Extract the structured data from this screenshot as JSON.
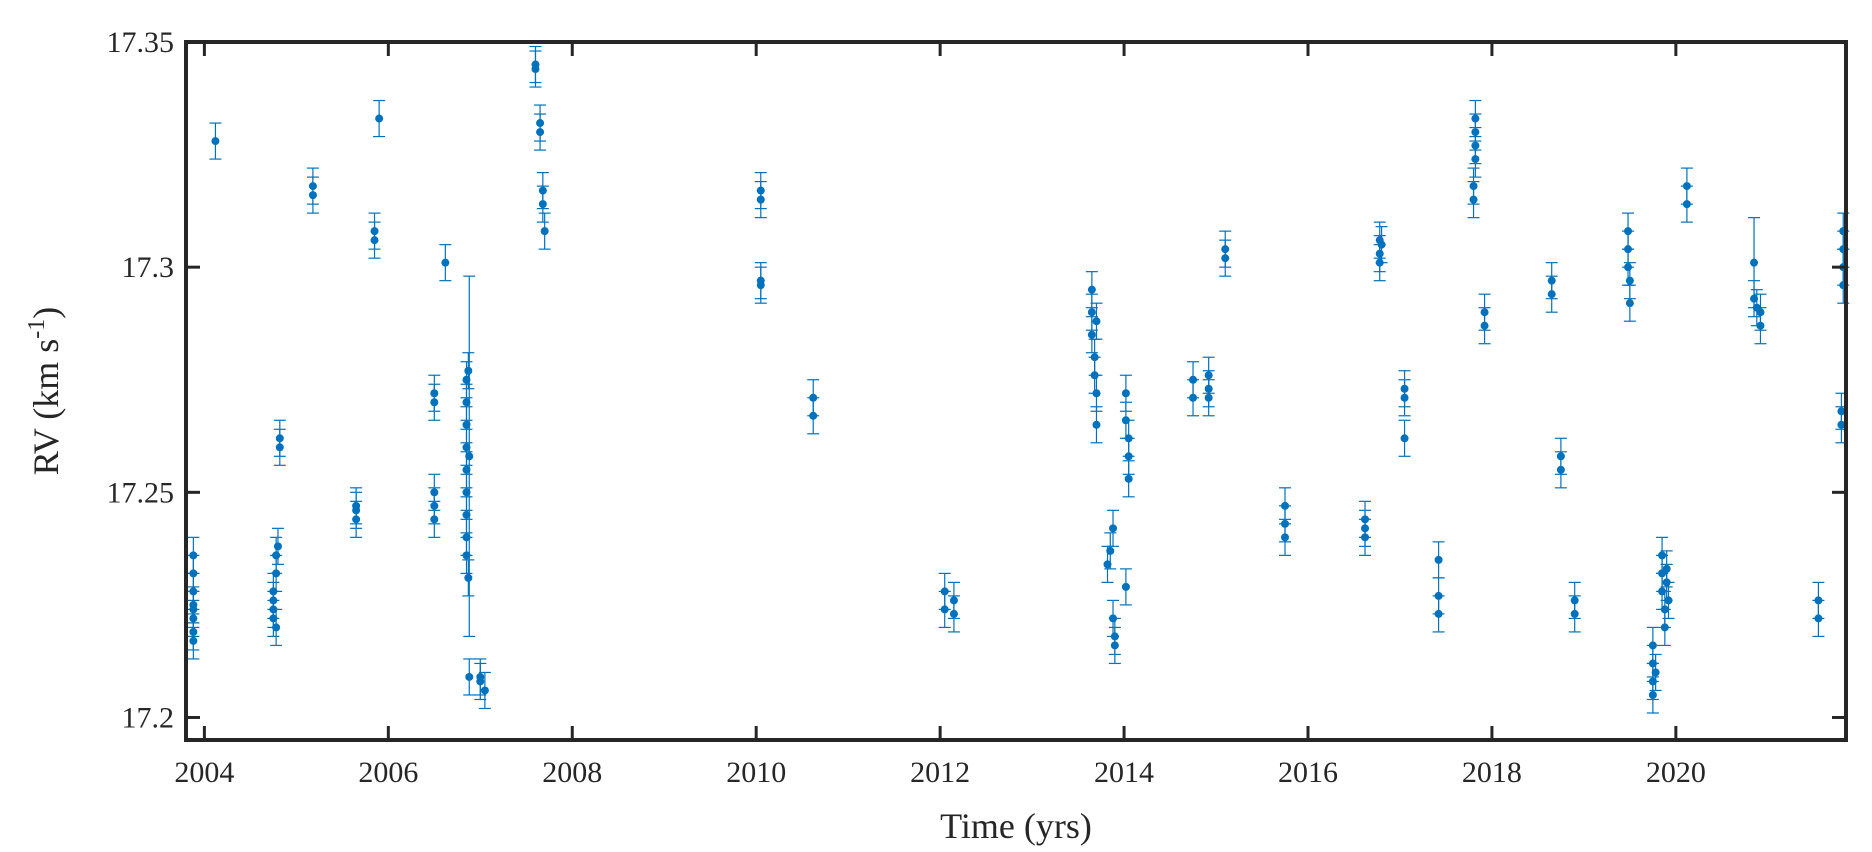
{
  "chart_data": {
    "type": "scatter",
    "title": "",
    "xlabel": "Time (yrs)",
    "ylabel_parts": [
      "RV (km s",
      "-1",
      ")"
    ],
    "xlim": [
      2003.8,
      2021.85
    ],
    "ylim": [
      17.195,
      17.35
    ],
    "xticks": [
      2004,
      2006,
      2008,
      2010,
      2012,
      2014,
      2016,
      2018,
      2020
    ],
    "xtick_labels": [
      "2004",
      "2006",
      "2008",
      "2010",
      "2012",
      "2014",
      "2016",
      "2018",
      "2020"
    ],
    "yticks": [
      17.2,
      17.25,
      17.3,
      17.35
    ],
    "ytick_labels": [
      "17.2",
      "17.25",
      "17.3",
      "17.35"
    ],
    "grid": false,
    "marker_color": "#0072BD",
    "series": [
      {
        "points": [
          [
            2003.88,
            17.236,
            0.004
          ],
          [
            2003.88,
            17.232,
            0.004
          ],
          [
            2003.88,
            17.228,
            0.004
          ],
          [
            2003.88,
            17.224,
            0.004
          ],
          [
            2003.88,
            17.222,
            0.004
          ],
          [
            2003.88,
            17.219,
            0.004
          ],
          [
            2003.88,
            17.217,
            0.004
          ],
          [
            2003.88,
            17.225,
            0.004
          ],
          [
            2004.12,
            17.328,
            0.004
          ],
          [
            2004.75,
            17.222,
            0.004
          ],
          [
            2004.75,
            17.226,
            0.004
          ],
          [
            2004.75,
            17.228,
            0.004
          ],
          [
            2004.75,
            17.224,
            0.004
          ],
          [
            2004.78,
            17.232,
            0.004
          ],
          [
            2004.78,
            17.236,
            0.004
          ],
          [
            2004.78,
            17.22,
            0.004
          ],
          [
            2004.8,
            17.238,
            0.004
          ],
          [
            2004.82,
            17.26,
            0.004
          ],
          [
            2004.82,
            17.262,
            0.004
          ],
          [
            2005.18,
            17.318,
            0.004
          ],
          [
            2005.18,
            17.316,
            0.004
          ],
          [
            2005.65,
            17.244,
            0.004
          ],
          [
            2005.65,
            17.246,
            0.004
          ],
          [
            2005.65,
            17.247,
            0.004
          ],
          [
            2005.85,
            17.308,
            0.004
          ],
          [
            2005.85,
            17.306,
            0.004
          ],
          [
            2005.9,
            17.333,
            0.004
          ],
          [
            2006.5,
            17.272,
            0.004
          ],
          [
            2006.5,
            17.27,
            0.004
          ],
          [
            2006.5,
            17.247,
            0.004
          ],
          [
            2006.5,
            17.244,
            0.004
          ],
          [
            2006.5,
            17.25,
            0.004
          ],
          [
            2006.62,
            17.301,
            0.004
          ],
          [
            2006.85,
            17.275,
            0.004
          ],
          [
            2006.85,
            17.27,
            0.004
          ],
          [
            2006.85,
            17.265,
            0.004
          ],
          [
            2006.85,
            17.26,
            0.004
          ],
          [
            2006.85,
            17.255,
            0.004
          ],
          [
            2006.85,
            17.25,
            0.004
          ],
          [
            2006.85,
            17.245,
            0.004
          ],
          [
            2006.85,
            17.24,
            0.004
          ],
          [
            2006.85,
            17.236,
            0.004
          ],
          [
            2006.87,
            17.231,
            0.004
          ],
          [
            2006.87,
            17.277,
            0.004
          ],
          [
            2006.88,
            17.258,
            0.04
          ],
          [
            2006.88,
            17.209,
            0.004
          ],
          [
            2007.0,
            17.209,
            0.004
          ],
          [
            2007.05,
            17.206,
            0.004
          ],
          [
            2007.0,
            17.208,
            0.004
          ],
          [
            2007.6,
            17.345,
            0.004
          ],
          [
            2007.6,
            17.344,
            0.004
          ],
          [
            2007.65,
            17.332,
            0.004
          ],
          [
            2007.65,
            17.33,
            0.004
          ],
          [
            2007.68,
            17.317,
            0.004
          ],
          [
            2007.68,
            17.314,
            0.004
          ],
          [
            2007.7,
            17.308,
            0.004
          ],
          [
            2010.05,
            17.317,
            0.004
          ],
          [
            2010.05,
            17.315,
            0.004
          ],
          [
            2010.05,
            17.297,
            0.004
          ],
          [
            2010.05,
            17.296,
            0.004
          ],
          [
            2010.62,
            17.271,
            0.004
          ],
          [
            2010.62,
            17.267,
            0.004
          ],
          [
            2012.05,
            17.228,
            0.004
          ],
          [
            2012.05,
            17.224,
            0.004
          ],
          [
            2012.15,
            17.226,
            0.004
          ],
          [
            2012.15,
            17.223,
            0.004
          ],
          [
            2013.65,
            17.295,
            0.004
          ],
          [
            2013.65,
            17.29,
            0.004
          ],
          [
            2013.65,
            17.285,
            0.004
          ],
          [
            2013.68,
            17.28,
            0.004
          ],
          [
            2013.68,
            17.276,
            0.004
          ],
          [
            2013.7,
            17.272,
            0.004
          ],
          [
            2013.7,
            17.265,
            0.004
          ],
          [
            2013.7,
            17.288,
            0.004
          ],
          [
            2013.82,
            17.234,
            0.004
          ],
          [
            2013.85,
            17.237,
            0.004
          ],
          [
            2013.88,
            17.242,
            0.004
          ],
          [
            2013.88,
            17.222,
            0.004
          ],
          [
            2013.9,
            17.216,
            0.004
          ],
          [
            2013.9,
            17.218,
            0.004
          ],
          [
            2014.02,
            17.272,
            0.004
          ],
          [
            2014.02,
            17.266,
            0.004
          ],
          [
            2014.05,
            17.262,
            0.004
          ],
          [
            2014.05,
            17.258,
            0.004
          ],
          [
            2014.05,
            17.253,
            0.004
          ],
          [
            2014.02,
            17.229,
            0.004
          ],
          [
            2014.75,
            17.275,
            0.004
          ],
          [
            2014.75,
            17.271,
            0.004
          ],
          [
            2014.92,
            17.276,
            0.004
          ],
          [
            2014.92,
            17.273,
            0.004
          ],
          [
            2014.92,
            17.271,
            0.004
          ],
          [
            2015.1,
            17.304,
            0.004
          ],
          [
            2015.1,
            17.302,
            0.004
          ],
          [
            2015.75,
            17.247,
            0.004
          ],
          [
            2015.75,
            17.243,
            0.004
          ],
          [
            2015.75,
            17.24,
            0.004
          ],
          [
            2016.62,
            17.244,
            0.004
          ],
          [
            2016.62,
            17.24,
            0.004
          ],
          [
            2016.62,
            17.242,
            0.004
          ],
          [
            2016.78,
            17.306,
            0.004
          ],
          [
            2016.78,
            17.303,
            0.004
          ],
          [
            2016.78,
            17.301,
            0.004
          ],
          [
            2016.8,
            17.305,
            0.004
          ],
          [
            2017.05,
            17.273,
            0.004
          ],
          [
            2017.05,
            17.271,
            0.004
          ],
          [
            2017.05,
            17.262,
            0.004
          ],
          [
            2017.42,
            17.235,
            0.004
          ],
          [
            2017.42,
            17.227,
            0.004
          ],
          [
            2017.42,
            17.223,
            0.004
          ],
          [
            2017.82,
            17.333,
            0.004
          ],
          [
            2017.82,
            17.33,
            0.004
          ],
          [
            2017.82,
            17.327,
            0.004
          ],
          [
            2017.82,
            17.324,
            0.004
          ],
          [
            2017.8,
            17.318,
            0.004
          ],
          [
            2017.8,
            17.315,
            0.004
          ],
          [
            2017.92,
            17.29,
            0.004
          ],
          [
            2017.92,
            17.287,
            0.004
          ],
          [
            2018.65,
            17.297,
            0.004
          ],
          [
            2018.65,
            17.294,
            0.004
          ],
          [
            2018.75,
            17.258,
            0.004
          ],
          [
            2018.75,
            17.255,
            0.004
          ],
          [
            2018.9,
            17.226,
            0.004
          ],
          [
            2018.9,
            17.223,
            0.004
          ],
          [
            2019.48,
            17.308,
            0.004
          ],
          [
            2019.48,
            17.304,
            0.004
          ],
          [
            2019.48,
            17.3,
            0.004
          ],
          [
            2019.5,
            17.297,
            0.004
          ],
          [
            2019.5,
            17.292,
            0.004
          ],
          [
            2019.75,
            17.216,
            0.004
          ],
          [
            2019.75,
            17.212,
            0.004
          ],
          [
            2019.75,
            17.208,
            0.004
          ],
          [
            2019.75,
            17.205,
            0.004
          ],
          [
            2019.78,
            17.21,
            0.004
          ],
          [
            2019.85,
            17.236,
            0.004
          ],
          [
            2019.85,
            17.232,
            0.004
          ],
          [
            2019.85,
            17.228,
            0.004
          ],
          [
            2019.88,
            17.224,
            0.004
          ],
          [
            2019.88,
            17.22,
            0.004
          ],
          [
            2019.9,
            17.23,
            0.004
          ],
          [
            2019.9,
            17.233,
            0.004
          ],
          [
            2019.92,
            17.226,
            0.004
          ],
          [
            2020.12,
            17.318,
            0.004
          ],
          [
            2020.12,
            17.314,
            0.004
          ],
          [
            2020.85,
            17.301,
            0.01
          ],
          [
            2020.85,
            17.293,
            0.004
          ],
          [
            2020.88,
            17.291,
            0.004
          ],
          [
            2020.92,
            17.29,
            0.004
          ],
          [
            2020.92,
            17.287,
            0.004
          ],
          [
            2021.55,
            17.226,
            0.004
          ],
          [
            2021.55,
            17.222,
            0.004
          ],
          [
            2021.82,
            17.308,
            0.004
          ],
          [
            2021.82,
            17.304,
            0.004
          ],
          [
            2021.82,
            17.3,
            0.004
          ],
          [
            2021.82,
            17.296,
            0.004
          ],
          [
            2021.8,
            17.268,
            0.004
          ],
          [
            2021.8,
            17.265,
            0.004
          ]
        ]
      }
    ]
  }
}
